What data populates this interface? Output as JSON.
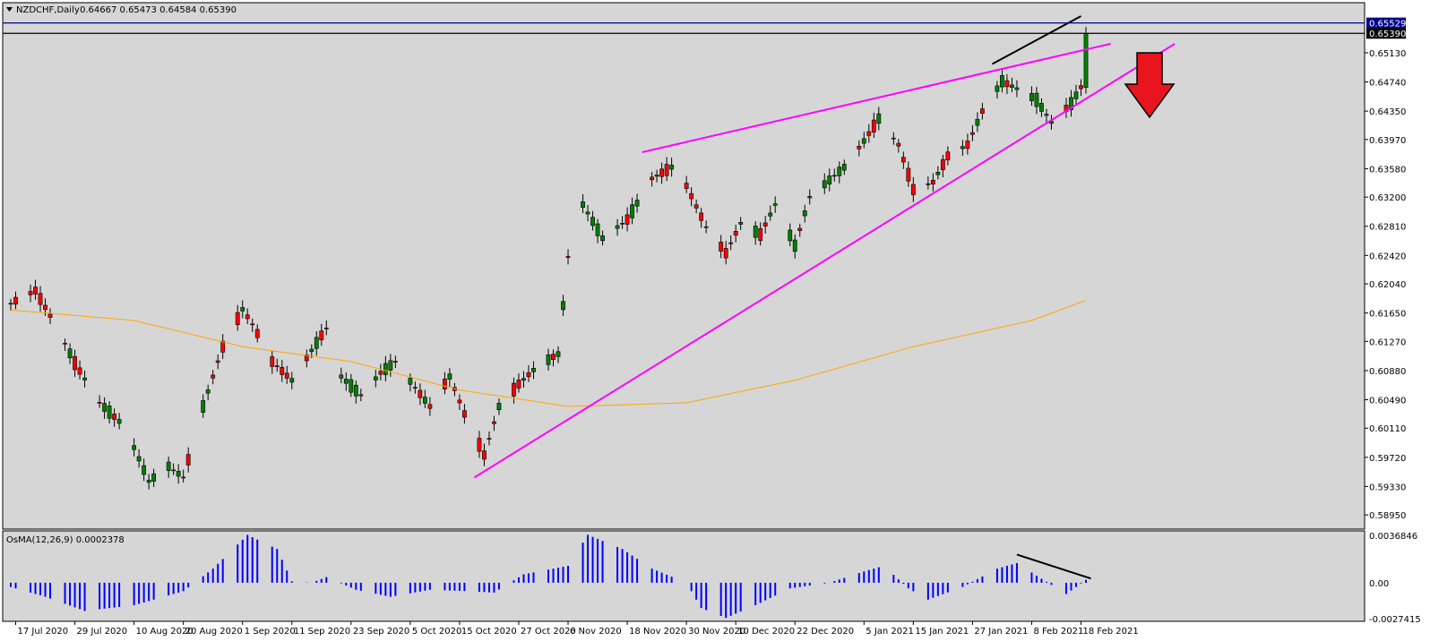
{
  "header": {
    "symbol": "NZDCHF,Daily",
    "ohlc": "0.64667 0.65473 0.64584 0.65390"
  },
  "osma": {
    "label": "OsMA(12,26,9) 0.0002378",
    "axis_labels": [
      "0.0036846",
      "0.00",
      "-0.0027415"
    ]
  },
  "axis": {
    "price_labels": [
      "0.65130",
      "0.64740",
      "0.64350",
      "0.63970",
      "0.63580",
      "0.63200",
      "0.62810",
      "0.62420",
      "0.62040",
      "0.61650",
      "0.61270",
      "0.60880",
      "0.60490",
      "0.60110",
      "0.59720",
      "0.59330",
      "0.58950"
    ],
    "date_labels": [
      "17 Jul 2020",
      "29 Jul 2020",
      "10 Aug 2020",
      "20 Aug 2020",
      "1 Sep 2020",
      "11 Sep 2020",
      "23 Sep 2020",
      "5 Oct 2020",
      "15 Oct 2020",
      "27 Oct 2020",
      "6 Nov 2020",
      "18 Nov 2020",
      "30 Nov 2020",
      "10 Dec 2020",
      "22 Dec 2020",
      "5 Jan 2021",
      "15 Jan 2021",
      "27 Jan 2021",
      "8 Feb 2021",
      "18 Feb 2021"
    ],
    "hline_labels": [
      "0.65529",
      "0.65390"
    ]
  },
  "colors": {
    "background": "#d6d6d6",
    "bull": "#008000",
    "bear": "#ff0000",
    "ma": "#ffa500",
    "wedge": "#ff00ff",
    "histogram": "#0000ff",
    "arrow": "#e8141e",
    "hline_high": "#00008b",
    "hline_close": "#000000"
  },
  "chart_data": [
    {
      "type": "candlestick",
      "title": "NZDCHF,Daily",
      "x_range": [
        "2020-07-16",
        "2021-02-19"
      ],
      "ylim": [
        0.5876,
        0.658
      ],
      "grid": false,
      "anchors": [
        [
          "2020-07-16",
          0.6178
        ],
        [
          "2020-07-21",
          0.6195
        ],
        [
          "2020-07-25",
          0.615
        ],
        [
          "2020-07-29",
          0.6098
        ],
        [
          "2020-08-03",
          0.6045
        ],
        [
          "2020-08-07",
          0.602
        ],
        [
          "2020-08-10",
          0.5985
        ],
        [
          "2020-08-13",
          0.594
        ],
        [
          "2020-08-17",
          0.596
        ],
        [
          "2020-08-20",
          0.5945
        ],
        [
          "2020-08-24",
          0.604
        ],
        [
          "2020-08-28",
          0.612
        ],
        [
          "2020-09-01",
          0.617
        ],
        [
          "2020-09-03",
          0.615
        ],
        [
          "2020-09-07",
          0.61
        ],
        [
          "2020-09-11",
          0.6075
        ],
        [
          "2020-09-15",
          0.6115
        ],
        [
          "2020-09-18",
          0.6145
        ],
        [
          "2020-09-21",
          0.608
        ],
        [
          "2020-09-25",
          0.6055
        ],
        [
          "2020-09-29",
          0.6085
        ],
        [
          "2020-10-02",
          0.61
        ],
        [
          "2020-10-06",
          0.6065
        ],
        [
          "2020-10-09",
          0.604
        ],
        [
          "2020-10-13",
          0.608
        ],
        [
          "2020-10-16",
          0.603
        ],
        [
          "2020-10-20",
          0.5975
        ],
        [
          "2020-10-23",
          0.604
        ],
        [
          "2020-10-27",
          0.607
        ],
        [
          "2020-10-31",
          0.6095
        ],
        [
          "2020-11-04",
          0.611
        ],
        [
          "2020-11-06",
          0.624
        ],
        [
          "2020-11-09",
          0.631
        ],
        [
          "2020-11-13",
          0.6265
        ],
        [
          "2020-11-18",
          0.629
        ],
        [
          "2020-11-23",
          0.6345
        ],
        [
          "2020-11-27",
          0.636
        ],
        [
          "2020-11-30",
          0.6335
        ],
        [
          "2020-12-04",
          0.628
        ],
        [
          "2020-12-08",
          0.6245
        ],
        [
          "2020-12-11",
          0.6285
        ],
        [
          "2020-12-15",
          0.627
        ],
        [
          "2020-12-18",
          0.631
        ],
        [
          "2020-12-22",
          0.6255
        ],
        [
          "2020-12-25",
          0.632
        ],
        [
          "2021-01-01",
          0.636
        ],
        [
          "2021-01-05",
          0.6395
        ],
        [
          "2021-01-08",
          0.6425
        ],
        [
          "2021-01-12",
          0.639
        ],
        [
          "2021-01-15",
          0.633
        ],
        [
          "2021-01-19",
          0.634
        ],
        [
          "2021-01-22",
          0.6375
        ],
        [
          "2021-01-26",
          0.639
        ],
        [
          "2021-01-29",
          0.6435
        ],
        [
          "2021-02-02",
          0.6475
        ],
        [
          "2021-02-05",
          0.6465
        ],
        [
          "2021-02-09",
          0.645
        ],
        [
          "2021-02-12",
          0.642
        ],
        [
          "2021-02-16",
          0.6445
        ],
        [
          "2021-02-18",
          0.6467
        ],
        [
          "2021-02-19",
          0.6539
        ]
      ],
      "moving_average": [
        [
          "2020-07-16",
          0.6169
        ],
        [
          "2020-08-10",
          0.6155
        ],
        [
          "2020-09-01",
          0.612
        ],
        [
          "2020-09-23",
          0.61
        ],
        [
          "2020-10-15",
          0.6062
        ],
        [
          "2020-11-06",
          0.604
        ],
        [
          "2020-11-30",
          0.6045
        ],
        [
          "2020-12-22",
          0.6075
        ],
        [
          "2021-01-15",
          0.612
        ],
        [
          "2021-02-08",
          0.6155
        ],
        [
          "2021-02-19",
          0.6182
        ]
      ],
      "trendlines": [
        {
          "from": [
            "2020-11-21",
            0.638
          ],
          "to": [
            "2021-02-24",
            0.6525
          ]
        },
        {
          "from": [
            "2020-10-18",
            0.5945
          ],
          "to": [
            "2021-03-09",
            0.6525
          ]
        },
        {
          "from": [
            "2021-01-31",
            0.6498
          ],
          "to": [
            "2021-02-18",
            0.6562
          ]
        }
      ],
      "horizontal_lines": [
        0.65529,
        0.6539
      ]
    },
    {
      "type": "bar",
      "title": "OsMA(12,26,9) 0.0002378",
      "ylim": [
        -0.0027415,
        0.0036846
      ],
      "anchors": [
        [
          "2020-07-16",
          -0.0003
        ],
        [
          "2020-07-23",
          -0.001
        ],
        [
          "2020-07-31",
          -0.002
        ],
        [
          "2020-08-10",
          -0.0016
        ],
        [
          "2020-08-20",
          -0.0006
        ],
        [
          "2020-08-26",
          0.001
        ],
        [
          "2020-09-02",
          0.0034
        ],
        [
          "2020-09-08",
          0.0024
        ],
        [
          "2020-09-11",
          0.0001
        ],
        [
          "2020-09-15",
          0.0
        ],
        [
          "2020-09-18",
          0.0004
        ],
        [
          "2020-09-24",
          -0.0005
        ],
        [
          "2020-10-01",
          -0.001
        ],
        [
          "2020-10-09",
          -0.0005
        ],
        [
          "2020-10-17",
          -0.0006
        ],
        [
          "2020-10-22",
          -0.0007
        ],
        [
          "2020-10-28",
          0.0006
        ],
        [
          "2020-11-06",
          0.0012
        ],
        [
          "2020-11-10",
          0.0034
        ],
        [
          "2020-11-17",
          0.0024
        ],
        [
          "2020-11-23",
          0.001
        ],
        [
          "2020-11-30",
          0.0
        ],
        [
          "2020-12-03",
          -0.0018
        ],
        [
          "2020-12-08",
          -0.0025
        ],
        [
          "2020-12-14",
          -0.0016
        ],
        [
          "2020-12-21",
          -0.0004
        ],
        [
          "2020-12-29",
          0.0
        ],
        [
          "2021-01-05",
          0.0008
        ],
        [
          "2021-01-09",
          0.0012
        ],
        [
          "2021-01-14",
          -0.0004
        ],
        [
          "2021-01-18",
          -0.0012
        ],
        [
          "2021-01-25",
          -0.0003
        ],
        [
          "2021-02-01",
          0.001
        ],
        [
          "2021-02-05",
          0.0014
        ],
        [
          "2021-02-09",
          0.0005
        ],
        [
          "2021-02-15",
          -0.0008
        ],
        [
          "2021-02-19",
          0.0002
        ]
      ],
      "annotations": [
        {
          "from": [
            "2021-02-05",
            0.002
          ],
          "to": [
            "2021-02-20",
            0.0003
          ]
        }
      ]
    }
  ]
}
